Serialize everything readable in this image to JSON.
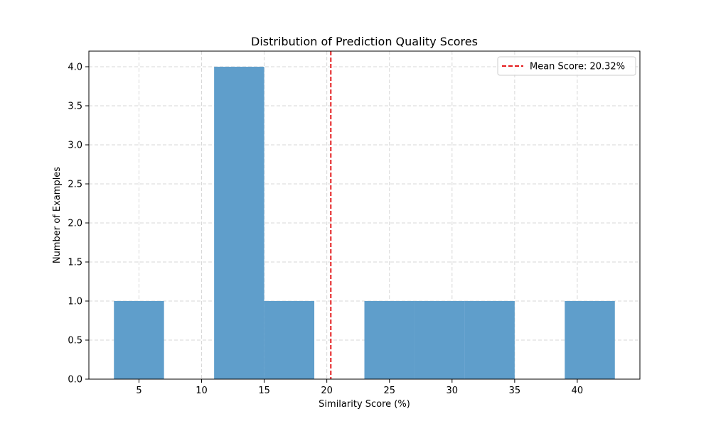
{
  "chart_data": {
    "type": "bar",
    "title": "Distribution of Prediction Quality Scores",
    "xlabel": "Similarity Score (%)",
    "ylabel": "Number of Examples",
    "xlim": [
      1.0,
      45.0
    ],
    "ylim": [
      0,
      4.2
    ],
    "x_ticks": [
      5,
      10,
      15,
      20,
      25,
      30,
      35,
      40
    ],
    "y_ticks": [
      0.0,
      0.5,
      1.0,
      1.5,
      2.0,
      2.5,
      3.0,
      3.5,
      4.0
    ],
    "y_tick_labels": [
      "0.0",
      "0.5",
      "1.0",
      "1.5",
      "2.0",
      "2.5",
      "3.0",
      "3.5",
      "4.0"
    ],
    "bins": [
      {
        "start": 3.0,
        "end": 7.0,
        "count": 1
      },
      {
        "start": 7.0,
        "end": 11.0,
        "count": 0
      },
      {
        "start": 11.0,
        "end": 15.0,
        "count": 4
      },
      {
        "start": 15.0,
        "end": 19.0,
        "count": 1
      },
      {
        "start": 19.0,
        "end": 23.0,
        "count": 0
      },
      {
        "start": 23.0,
        "end": 27.0,
        "count": 1
      },
      {
        "start": 27.0,
        "end": 31.0,
        "count": 1
      },
      {
        "start": 31.0,
        "end": 35.0,
        "count": 1
      },
      {
        "start": 35.0,
        "end": 39.0,
        "count": 0
      },
      {
        "start": 39.0,
        "end": 43.0,
        "count": 1
      }
    ],
    "mean_line": {
      "value": 20.32,
      "label": "Mean Score: 20.32%",
      "color": "#e41a1c"
    },
    "bar_color": "#5f9ecb",
    "grid": true,
    "legend_position": "top-right"
  }
}
